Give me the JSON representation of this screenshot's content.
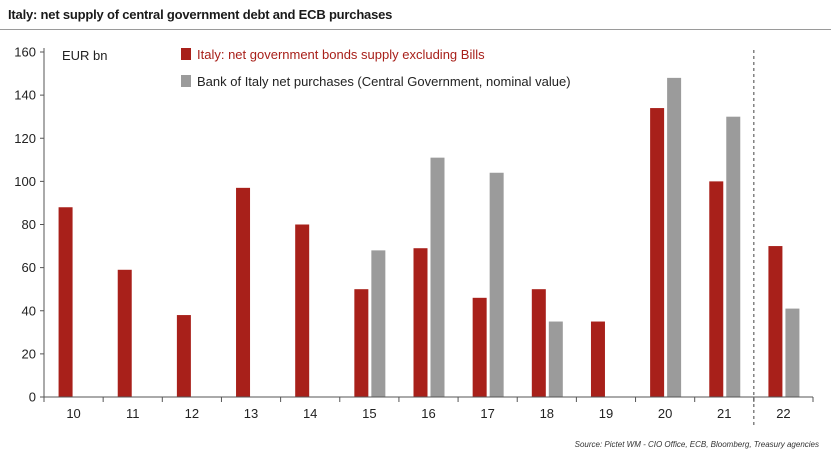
{
  "chart_data": {
    "type": "bar",
    "title": "Italy: net supply of central government debt and ECB purchases",
    "ylabel": "EUR bn",
    "xlabel": "",
    "ylim": [
      0,
      160
    ],
    "yticks": [
      0,
      20,
      40,
      60,
      80,
      100,
      120,
      140,
      160
    ],
    "categories": [
      "10",
      "11",
      "12",
      "13",
      "14",
      "15",
      "16",
      "17",
      "18",
      "19",
      "20",
      "21",
      "22"
    ],
    "series": [
      {
        "name": "Italy: net government bonds supply excluding Bills",
        "color": "#a8201a",
        "values": [
          88,
          59,
          38,
          97,
          80,
          50,
          69,
          46,
          50,
          35,
          134,
          100,
          70
        ]
      },
      {
        "name": "Bank of Italy net purchases (Central Government, nominal value)",
        "color": "#9b9b9b",
        "values": [
          null,
          null,
          null,
          null,
          null,
          68,
          111,
          104,
          35,
          null,
          148,
          130,
          41
        ]
      }
    ],
    "forecast_divider_after": "21",
    "legend_position": "top-left",
    "source": "Source: Pictet WM - CIO Office, ECB, Bloomberg, Treasury agencies"
  }
}
